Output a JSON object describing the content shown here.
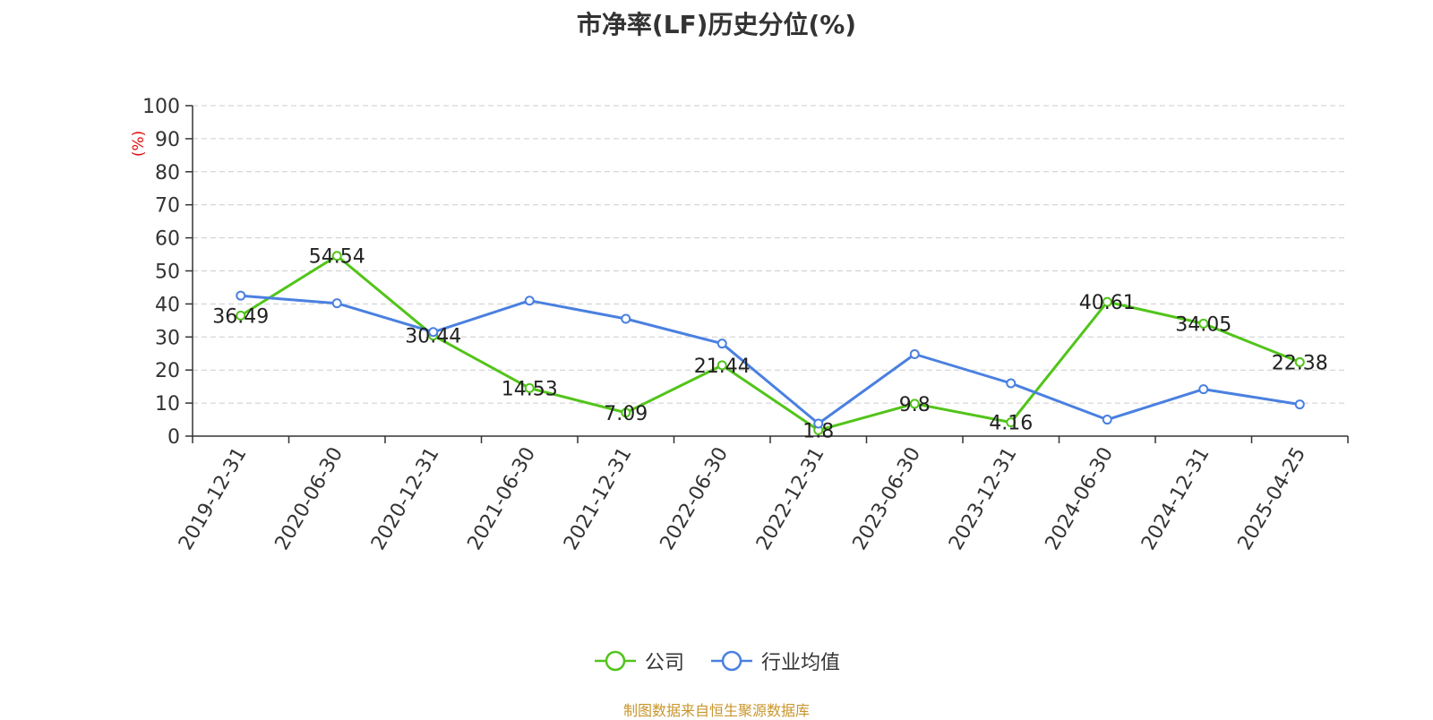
{
  "chart_data": {
    "type": "line",
    "title": "市净率(LF)历史分位(%)",
    "ylabel": "(%)",
    "xlabel": "",
    "ylim": [
      0,
      100
    ],
    "yticks": [
      0,
      10,
      20,
      30,
      40,
      50,
      60,
      70,
      80,
      90,
      100
    ],
    "grid": true,
    "legend_position": "bottom-center",
    "categories": [
      "2019-12-31",
      "2020-06-30",
      "2020-12-31",
      "2021-06-30",
      "2021-12-31",
      "2022-06-30",
      "2022-12-31",
      "2023-06-30",
      "2023-12-31",
      "2024-06-30",
      "2024-12-31",
      "2025-04-25"
    ],
    "series": [
      {
        "name": "公司",
        "color": "#52c41a",
        "show_labels": true,
        "values": [
          36.49,
          54.54,
          30.44,
          14.53,
          7.09,
          21.44,
          1.8,
          9.8,
          4.16,
          40.61,
          34.05,
          22.38
        ],
        "labels": [
          "36.49",
          "54.54",
          "30.44",
          "14.53",
          "7.09",
          "21.44",
          "1.8",
          "9.8",
          "4.16",
          "40.61",
          "34.05",
          "22.38"
        ]
      },
      {
        "name": "行业均值",
        "color": "#4a80e0",
        "show_labels": false,
        "values": [
          42.5,
          40.2,
          31.5,
          41.0,
          35.5,
          28.0,
          3.8,
          24.8,
          16.0,
          5.0,
          14.2,
          9.6
        ]
      }
    ]
  },
  "source_note": "制图数据来自恒生聚源数据库"
}
